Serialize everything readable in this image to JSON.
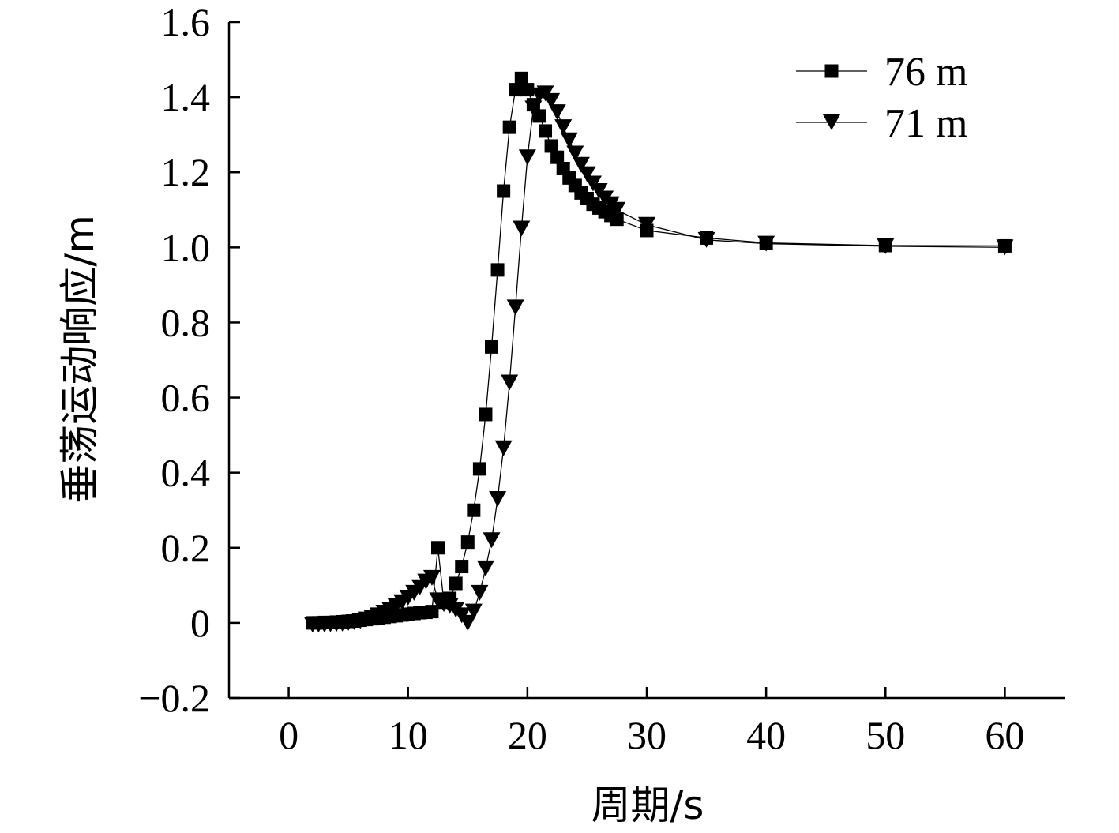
{
  "chart_data": {
    "type": "line",
    "title": "",
    "xlabel": "周期/s",
    "ylabel": "垂荡运动响应/m",
    "xlim": [
      -5,
      65
    ],
    "ylim": [
      -0.2,
      1.6
    ],
    "x_ticks": [
      0,
      10,
      20,
      30,
      40,
      50,
      60
    ],
    "y_ticks": [
      -0.2,
      0,
      0.2,
      0.4,
      0.6,
      0.8,
      1.0,
      1.2,
      1.4,
      1.6
    ],
    "y_tick_labels": [
      "−0.2",
      "0",
      "0.2",
      "0.4",
      "0.6",
      "0.8",
      "1.0",
      "1.2",
      "1.4",
      "1.6"
    ],
    "grid": false,
    "legend_position": "top-right",
    "series": [
      {
        "name": "76 m",
        "marker": "square",
        "x": [
          2,
          2.5,
          3,
          3.5,
          4,
          4.5,
          5,
          5.5,
          6,
          6.5,
          7,
          7.5,
          8,
          8.5,
          9,
          9.5,
          10,
          10.5,
          11,
          11.5,
          12,
          12.5,
          13,
          13.5,
          14,
          14.5,
          15,
          15.5,
          16,
          16.5,
          17,
          17.5,
          18,
          18.5,
          19,
          19.5,
          20,
          20.5,
          21,
          21.5,
          22,
          22.5,
          23,
          23.5,
          24,
          24.5,
          25,
          25.5,
          26,
          26.5,
          27,
          27.5,
          30,
          35,
          40,
          50,
          60
        ],
        "y": [
          0,
          0,
          0.001,
          0.001,
          0.002,
          0.003,
          0.004,
          0.005,
          0.007,
          0.009,
          0.011,
          0.013,
          0.015,
          0.017,
          0.019,
          0.021,
          0.023,
          0.025,
          0.027,
          0.028,
          0.03,
          0.2,
          0.055,
          0.065,
          0.105,
          0.15,
          0.215,
          0.3,
          0.41,
          0.555,
          0.735,
          0.94,
          1.15,
          1.32,
          1.42,
          1.45,
          1.42,
          1.38,
          1.35,
          1.31,
          1.27,
          1.24,
          1.21,
          1.185,
          1.165,
          1.145,
          1.13,
          1.115,
          1.105,
          1.095,
          1.085,
          1.075,
          1.045,
          1.025,
          1.012,
          1.005,
          1.004
        ]
      },
      {
        "name": "71 m",
        "marker": "triangle-down",
        "x": [
          2,
          2.5,
          3,
          3.5,
          4,
          4.5,
          5,
          5.5,
          6,
          6.5,
          7,
          7.5,
          8,
          8.5,
          9,
          9.5,
          10,
          10.5,
          11,
          11.5,
          12,
          12.5,
          13,
          13.5,
          14,
          14.5,
          15,
          15.5,
          16,
          16.5,
          17,
          17.5,
          18,
          18.5,
          19,
          19.5,
          20,
          20.5,
          21,
          21.5,
          22,
          22.5,
          23,
          23.5,
          24,
          24.5,
          25,
          25.5,
          26,
          26.5,
          27,
          27.5,
          30,
          35,
          40,
          50,
          60
        ],
        "y": [
          -0.005,
          -0.005,
          -0.005,
          -0.004,
          -0.003,
          -0.002,
          0,
          0.002,
          0.005,
          0.009,
          0.014,
          0.02,
          0.027,
          0.035,
          0.045,
          0.055,
          0.067,
          0.08,
          0.095,
          0.11,
          0.12,
          0.06,
          0.05,
          0.045,
          0.035,
          0.02,
          0.0,
          0.03,
          0.08,
          0.145,
          0.22,
          0.33,
          0.465,
          0.64,
          0.84,
          1.05,
          1.24,
          1.37,
          1.405,
          1.41,
          1.39,
          1.36,
          1.32,
          1.285,
          1.25,
          1.22,
          1.195,
          1.17,
          1.15,
          1.13,
          1.115,
          1.1,
          1.06,
          1.02,
          1.01,
          1.003,
          1.0
        ]
      }
    ]
  }
}
